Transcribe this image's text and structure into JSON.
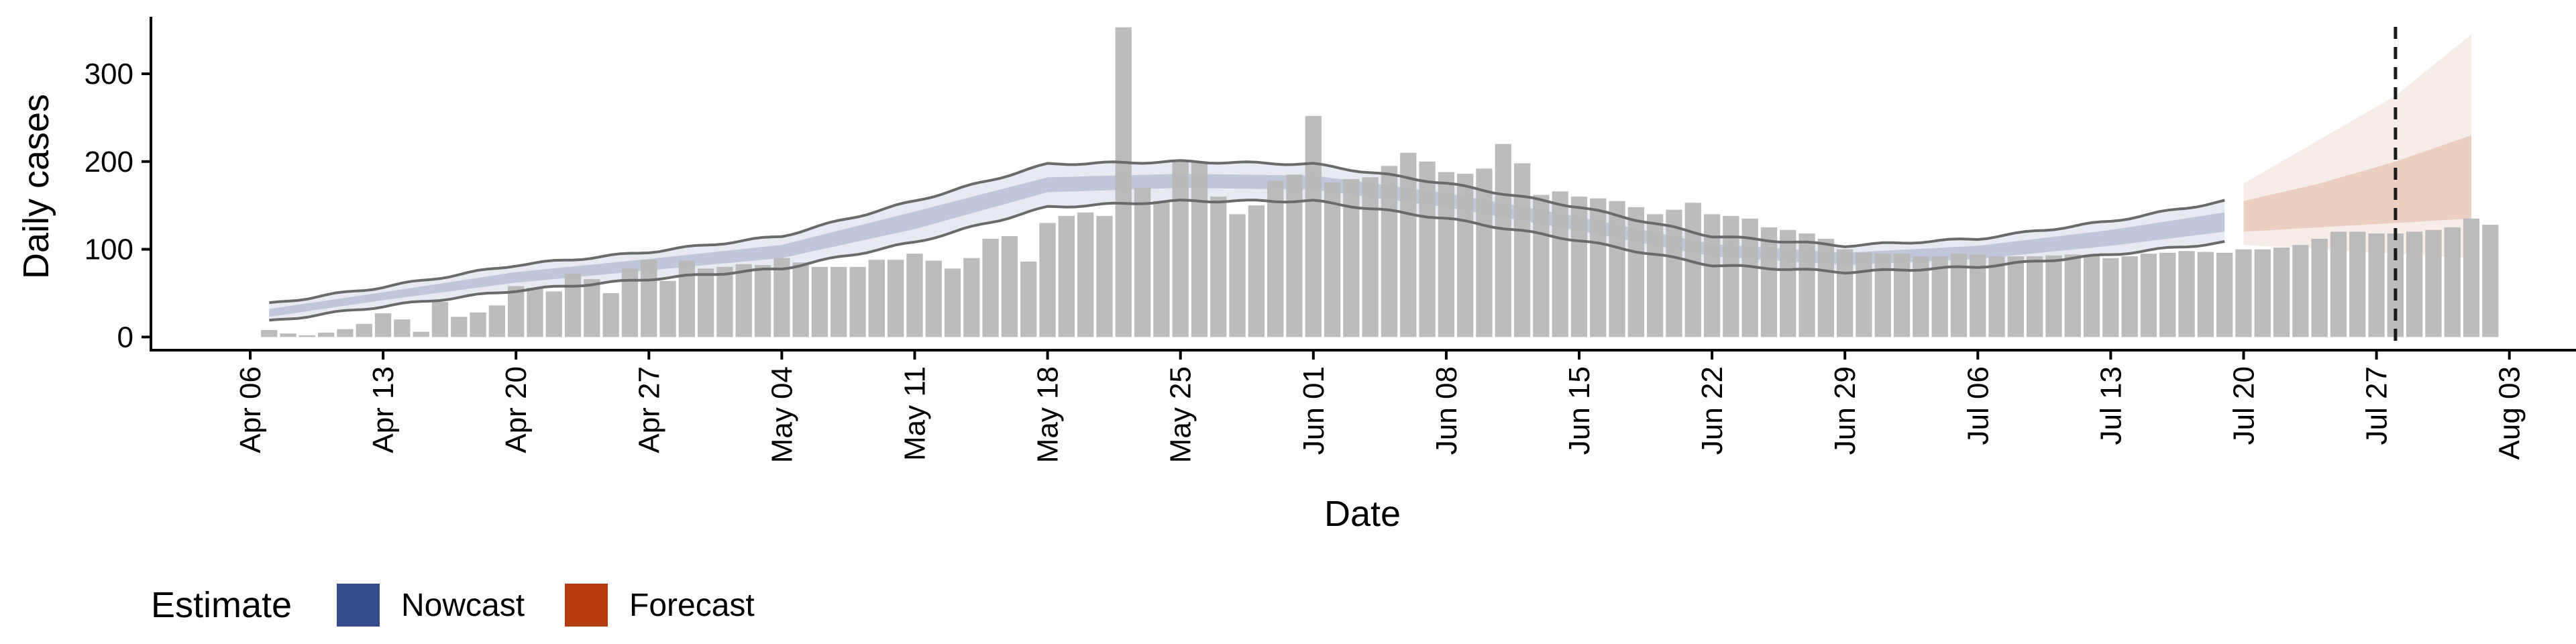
{
  "chart_data": {
    "type": "bar",
    "xlabel": "Date",
    "ylabel": "Daily cases",
    "ylim": [
      -15,
      365
    ],
    "y_ticks": [
      0,
      100,
      200,
      300
    ],
    "x_ticks": [
      {
        "date": "2020-04-06",
        "label": "Apr 06"
      },
      {
        "date": "2020-04-13",
        "label": "Apr 13"
      },
      {
        "date": "2020-04-20",
        "label": "Apr 20"
      },
      {
        "date": "2020-04-27",
        "label": "Apr 27"
      },
      {
        "date": "2020-05-04",
        "label": "May 04"
      },
      {
        "date": "2020-05-11",
        "label": "May 11"
      },
      {
        "date": "2020-05-18",
        "label": "May 18"
      },
      {
        "date": "2020-05-25",
        "label": "May 25"
      },
      {
        "date": "2020-06-01",
        "label": "Jun 01"
      },
      {
        "date": "2020-06-08",
        "label": "Jun 08"
      },
      {
        "date": "2020-06-15",
        "label": "Jun 15"
      },
      {
        "date": "2020-06-22",
        "label": "Jun 22"
      },
      {
        "date": "2020-06-29",
        "label": "Jun 29"
      },
      {
        "date": "2020-07-06",
        "label": "Jul 06"
      },
      {
        "date": "2020-07-13",
        "label": "Jul 13"
      },
      {
        "date": "2020-07-20",
        "label": "Jul 20"
      },
      {
        "date": "2020-07-27",
        "label": "Jul 27"
      },
      {
        "date": "2020-08-03",
        "label": "Aug 03"
      }
    ],
    "bar_start_date": "2020-04-07",
    "bars": [
      8,
      4,
      2,
      5,
      9,
      15,
      27,
      20,
      6,
      40,
      23,
      28,
      36,
      58,
      56,
      52,
      72,
      66,
      50,
      78,
      88,
      64,
      87,
      78,
      80,
      83,
      82,
      90,
      85,
      80,
      80,
      80,
      88,
      88,
      95,
      87,
      78,
      90,
      112,
      115,
      86,
      130,
      138,
      142,
      138,
      353,
      170,
      155,
      200,
      200,
      160,
      140,
      150,
      178,
      185,
      252,
      176,
      180,
      182,
      195,
      210,
      200,
      188,
      186,
      192,
      220,
      198,
      162,
      166,
      160,
      158,
      155,
      148,
      140,
      145,
      153,
      140,
      138,
      135,
      125,
      122,
      118,
      112,
      100,
      96,
      95,
      95,
      92,
      92,
      95,
      94,
      92,
      92,
      92,
      93,
      94,
      92,
      90,
      92,
      95,
      96,
      98,
      97,
      96,
      100,
      100,
      102,
      105,
      112,
      120,
      120,
      118,
      118,
      120,
      122,
      125,
      135,
      128
    ],
    "nowcast": {
      "start_date": "2020-04-07",
      "end_date": "2020-07-19",
      "knots": [
        {
          "date": "2020-04-07",
          "lo": 18,
          "hi": 38,
          "mid_lo": 23,
          "mid_hi": 32
        },
        {
          "date": "2020-04-13",
          "lo": 35,
          "hi": 57,
          "mid_lo": 42,
          "mid_hi": 51
        },
        {
          "date": "2020-04-20",
          "lo": 53,
          "hi": 82,
          "mid_lo": 62,
          "mid_hi": 74
        },
        {
          "date": "2020-04-27",
          "lo": 66,
          "hi": 97,
          "mid_lo": 76,
          "mid_hi": 89
        },
        {
          "date": "2020-05-04",
          "lo": 78,
          "hi": 115,
          "mid_lo": 90,
          "mid_hi": 105
        },
        {
          "date": "2020-05-11",
          "lo": 108,
          "hi": 155,
          "mid_lo": 123,
          "mid_hi": 143
        },
        {
          "date": "2020-05-18",
          "lo": 148,
          "hi": 197,
          "mid_lo": 165,
          "mid_hi": 182
        },
        {
          "date": "2020-05-25",
          "lo": 155,
          "hi": 200,
          "mid_lo": 170,
          "mid_hi": 186
        },
        {
          "date": "2020-06-01",
          "lo": 155,
          "hi": 197,
          "mid_lo": 168,
          "mid_hi": 184
        },
        {
          "date": "2020-06-08",
          "lo": 135,
          "hi": 175,
          "mid_lo": 148,
          "mid_hi": 164
        },
        {
          "date": "2020-06-15",
          "lo": 110,
          "hi": 148,
          "mid_lo": 121,
          "mid_hi": 137
        },
        {
          "date": "2020-06-22",
          "lo": 82,
          "hi": 115,
          "mid_lo": 92,
          "mid_hi": 106
        },
        {
          "date": "2020-06-29",
          "lo": 74,
          "hi": 104,
          "mid_lo": 82,
          "mid_hi": 96
        },
        {
          "date": "2020-07-06",
          "lo": 80,
          "hi": 112,
          "mid_lo": 89,
          "mid_hi": 104
        },
        {
          "date": "2020-07-13",
          "lo": 94,
          "hi": 132,
          "mid_lo": 104,
          "mid_hi": 122
        },
        {
          "date": "2020-07-19",
          "lo": 108,
          "hi": 155,
          "mid_lo": 120,
          "mid_hi": 142
        }
      ]
    },
    "forecast": {
      "knots": [
        {
          "date": "2020-07-20",
          "lo": 105,
          "hi": 175,
          "mid_lo": 120,
          "mid_hi": 155
        },
        {
          "date": "2020-07-24",
          "lo": 100,
          "hi": 225,
          "mid_lo": 125,
          "mid_hi": 175
        },
        {
          "date": "2020-07-28",
          "lo": 95,
          "hi": 275,
          "mid_lo": 130,
          "mid_hi": 200
        },
        {
          "date": "2020-08-01",
          "lo": 90,
          "hi": 345,
          "mid_lo": 135,
          "mid_hi": 230
        }
      ]
    },
    "vline_date": "2020-07-28",
    "grid": false,
    "legend_position": "bottom-left",
    "colors": {
      "bar": "#b8b8b8",
      "nowcast": "#3a4f8f",
      "forecast": "#b54a1c",
      "outline": "#6a6a6a"
    }
  },
  "legend": {
    "title": "Estimate",
    "items": [
      {
        "label": "Nowcast",
        "color": "#344b8e"
      },
      {
        "label": "Forecast",
        "color": "#b33b0f"
      }
    ]
  }
}
